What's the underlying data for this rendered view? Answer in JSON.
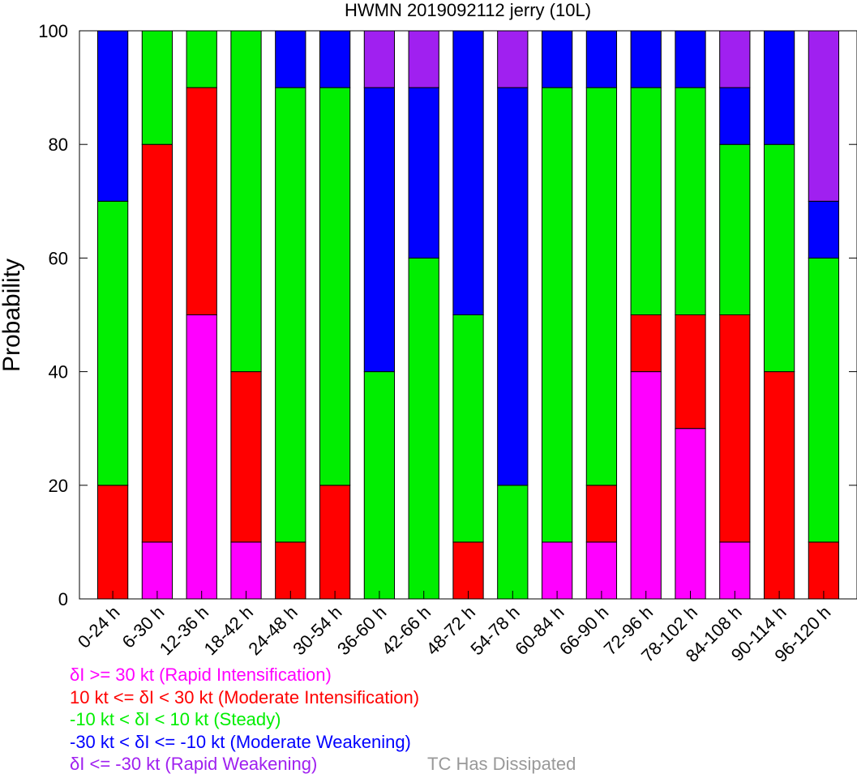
{
  "chart_data": {
    "type": "bar",
    "stacked": true,
    "title": "HWMN 2019092112 jerry (10L)",
    "xlabel": "",
    "ylabel": "Probability",
    "ylim": [
      0,
      100
    ],
    "yticks": [
      0,
      20,
      40,
      60,
      80,
      100
    ],
    "grid": false,
    "categories": [
      "0-24 h",
      "6-30 h",
      "12-36 h",
      "18-42 h",
      "24-48 h",
      "30-54 h",
      "36-60 h",
      "42-66 h",
      "48-72 h",
      "54-78 h",
      "60-84 h",
      "66-90 h",
      "72-96 h",
      "78-102 h",
      "84-108 h",
      "90-114 h",
      "96-120 h"
    ],
    "series": [
      {
        "name": "δI >= 30 kt (Rapid Intensification)",
        "color": "#ff00ff",
        "values": [
          0,
          10,
          50,
          10,
          0,
          0,
          0,
          0,
          0,
          0,
          10,
          10,
          40,
          30,
          10,
          0,
          0
        ]
      },
      {
        "name": "10 kt <= δI < 30 kt (Moderate Intensification)",
        "color": "#ff0000",
        "values": [
          20,
          70,
          40,
          30,
          10,
          20,
          0,
          0,
          10,
          0,
          0,
          10,
          10,
          20,
          40,
          40,
          10
        ]
      },
      {
        "name": "-10 kt < δI < 10 kt (Steady)",
        "color": "#00ee00",
        "values": [
          50,
          20,
          10,
          60,
          80,
          70,
          40,
          60,
          40,
          20,
          80,
          70,
          40,
          40,
          30,
          40,
          50
        ]
      },
      {
        "name": "-30 kt < δI <= -10 kt (Moderate Weakening)",
        "color": "#0000ff",
        "values": [
          30,
          0,
          0,
          0,
          10,
          10,
          50,
          30,
          50,
          70,
          10,
          10,
          10,
          10,
          10,
          20,
          10
        ]
      },
      {
        "name": "δI <= -30 kt (Rapid Weakening)",
        "color": "#a020f0",
        "values": [
          0,
          0,
          0,
          0,
          0,
          0,
          10,
          10,
          0,
          10,
          0,
          0,
          0,
          0,
          10,
          0,
          30
        ]
      }
    ],
    "legend": {
      "lines": [
        {
          "text": "δI >= 30 kt (Rapid Intensification)",
          "color": "#ff00ff"
        },
        {
          "text": "10 kt <= δI < 30 kt (Moderate Intensification)",
          "color": "#ff0000"
        },
        {
          "text": "-10 kt < δI < 10 kt (Steady)",
          "color": "#00ee00"
        },
        {
          "text": "-30 kt < δI <= -10 kt (Moderate Weakening)",
          "color": "#0000ff"
        },
        {
          "text": "δI <= -30 kt (Rapid Weakening)",
          "color": "#a020f0"
        }
      ],
      "dissipated": {
        "text": "TC Has Dissipated",
        "color": "#999999"
      }
    }
  }
}
